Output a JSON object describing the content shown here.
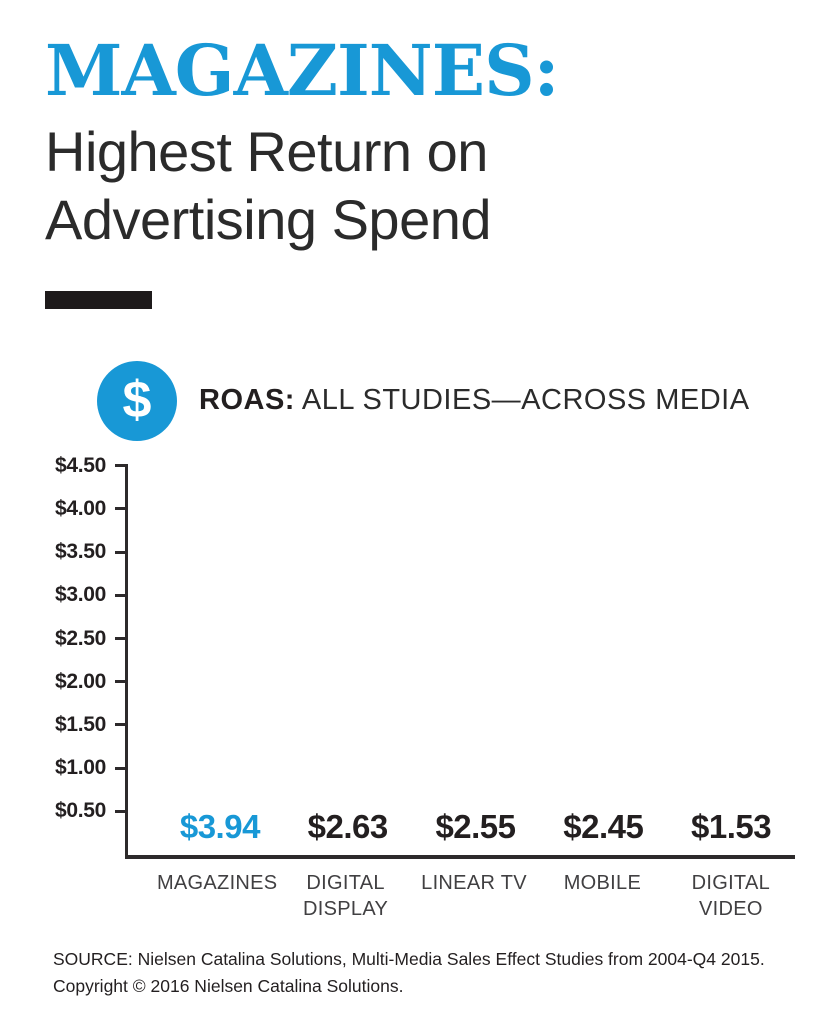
{
  "header": {
    "title": "MAGAZINES:",
    "subtitle_line1": "Highest Return on",
    "subtitle_line2": "Advertising Spend"
  },
  "roas_header": {
    "icon_glyph": "$",
    "label_bold": "ROAS:",
    "label_rest": " ALL STUDIES—ACROSS MEDIA"
  },
  "chart_data": {
    "type": "bar",
    "title": "ROAS: ALL STUDIES—ACROSS MEDIA",
    "categories": [
      "MAGAZINES",
      "DIGITAL\nDISPLAY",
      "LINEAR TV",
      "MOBILE",
      "DIGITAL\nVIDEO"
    ],
    "values": [
      3.94,
      2.63,
      2.55,
      2.45,
      1.53
    ],
    "value_labels": [
      "$3.94",
      "$2.63",
      "$2.55",
      "$2.45",
      "$1.53"
    ],
    "ylabel": "",
    "xlabel": "",
    "ylim": [
      0,
      4.5
    ],
    "grid": false,
    "legend": false,
    "highlight_index": 0,
    "yticks": [
      {
        "label": "$4.50",
        "value": 4.5
      },
      {
        "label": "$4.00",
        "value": 4.0
      },
      {
        "label": "$3.50",
        "value": 3.5
      },
      {
        "label": "$3.00",
        "value": 3.0
      },
      {
        "label": "$2.50",
        "value": 2.5
      },
      {
        "label": "$2.00",
        "value": 2.0
      },
      {
        "label": "$1.50",
        "value": 1.5
      },
      {
        "label": "$1.00",
        "value": 1.0
      },
      {
        "label": "$0.50",
        "value": 0.5
      }
    ]
  },
  "colors": {
    "accent_blue": "#1898d6",
    "bar_gray": "#626365",
    "value_label_dark": "#231f20",
    "axis": "#2d2a2b",
    "divider_black": "#1e1a1b"
  },
  "footer": {
    "source_line1": "SOURCE: Nielsen Catalina Solutions, Multi-Media Sales Effect Studies from 2004-Q4 2015.",
    "source_line2": "Copyright © 2016 Nielsen Catalina Solutions."
  }
}
